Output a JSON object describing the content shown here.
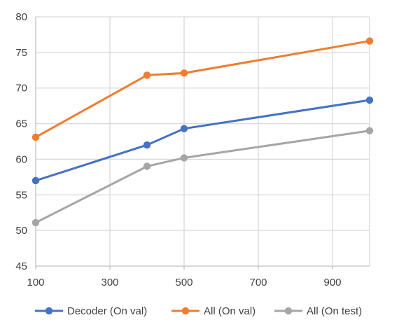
{
  "chart_data": {
    "type": "line",
    "x_range": [
      100,
      1000
    ],
    "ylim": [
      45,
      80
    ],
    "x_ticks": [
      100,
      300,
      500,
      700,
      900
    ],
    "y_ticks": [
      45,
      50,
      55,
      60,
      65,
      70,
      75,
      80
    ],
    "grid": true,
    "legend_position": "bottom",
    "series": [
      {
        "name": "Decoder (On val)",
        "color": "#4472C4",
        "points": [
          [
            100,
            57.0
          ],
          [
            400,
            62.0
          ],
          [
            500,
            64.3
          ],
          [
            1000,
            68.3
          ]
        ]
      },
      {
        "name": "All (On val)",
        "color": "#ED7D31",
        "points": [
          [
            100,
            63.1
          ],
          [
            400,
            71.8
          ],
          [
            500,
            72.1
          ],
          [
            1000,
            76.6
          ]
        ]
      },
      {
        "name": "All (On test)",
        "color": "#A5A5A5",
        "points": [
          [
            100,
            51.1
          ],
          [
            400,
            59.0
          ],
          [
            500,
            60.2
          ],
          [
            1000,
            64.0
          ]
        ]
      }
    ]
  }
}
